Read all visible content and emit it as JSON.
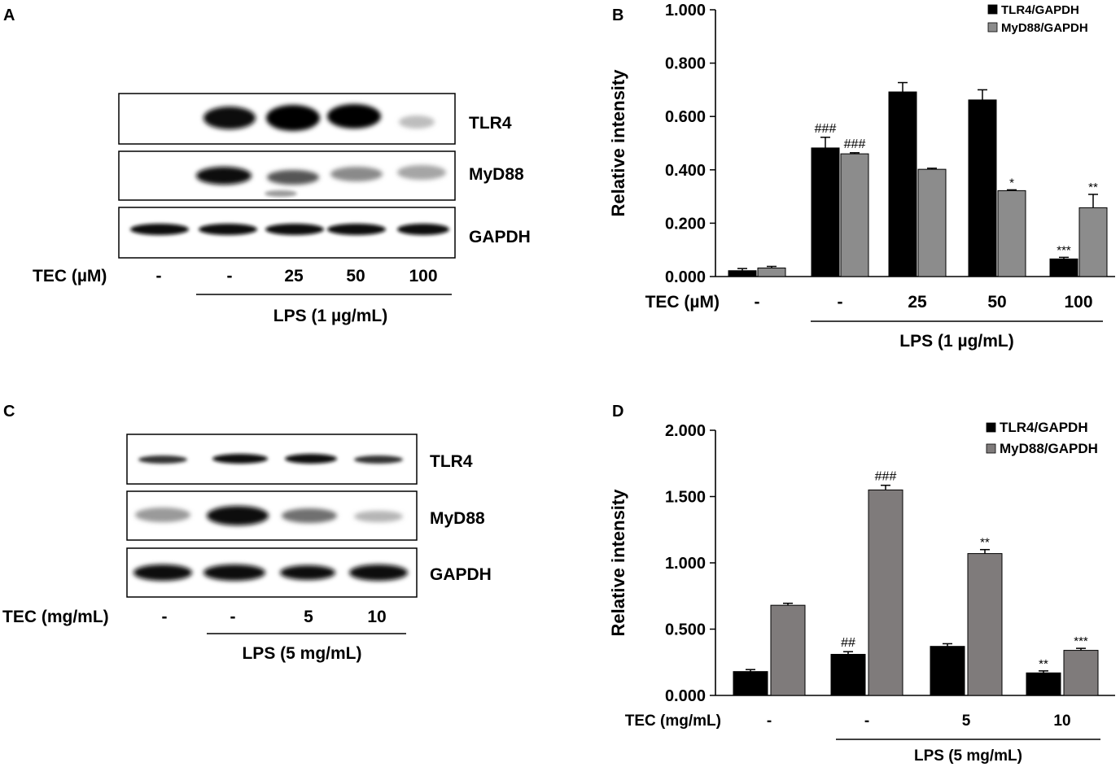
{
  "colors": {
    "black": "#000000",
    "gray": "#8c8c8c",
    "gray_d": "#7f7b7b",
    "text": "#000000"
  },
  "panels": {
    "a": {
      "letter": "A",
      "blot_labels": [
        "TLR4",
        "MyD88",
        "GAPDH"
      ],
      "row_header": "TEC (µM)",
      "lane_values": [
        "-",
        "-",
        "25",
        "50",
        "100"
      ],
      "group_label": "LPS (1 µg/mL)"
    },
    "c": {
      "letter": "C",
      "blot_labels": [
        "TLR4",
        "MyD88",
        "GAPDH"
      ],
      "row_header": "TEC (mg/mL)",
      "lane_values": [
        "-",
        "-",
        "5",
        "10"
      ],
      "group_label": "LPS (5 mg/mL)"
    }
  },
  "chart_data": [
    {
      "panel": "B",
      "type": "bar",
      "ylabel": "Relative intensity",
      "ylim": [
        0,
        1.0
      ],
      "yticks": [
        "0.000",
        "0.200",
        "0.400",
        "0.600",
        "0.800",
        "1.000"
      ],
      "xlabel_header": "TEC (µM)",
      "categories": [
        "-",
        "-",
        "25",
        "50",
        "100"
      ],
      "group_label": "LPS (1 µg/mL)",
      "legend_position": "top-right",
      "series": [
        {
          "name": "TLR4/GAPDH",
          "color": "#000000",
          "values": [
            0.022,
            0.482,
            0.692,
            0.662,
            0.066
          ],
          "errors": [
            0.008,
            0.04,
            0.035,
            0.038,
            0.006
          ],
          "annotations": [
            "",
            "###",
            "",
            "",
            "***"
          ]
        },
        {
          "name": "MyD88/GAPDH",
          "color": "#8c8c8c",
          "values": [
            0.032,
            0.46,
            0.402,
            0.322,
            0.258
          ],
          "errors": [
            0.006,
            0.004,
            0.004,
            0.003,
            0.05
          ],
          "annotations": [
            "",
            "###",
            "",
            "*",
            "**"
          ]
        }
      ]
    },
    {
      "panel": "D",
      "type": "bar",
      "ylabel": "Relative intensity",
      "ylim": [
        0,
        2.0
      ],
      "yticks": [
        "0.000",
        "0.500",
        "1.000",
        "1.500",
        "2.000"
      ],
      "xlabel_header": "TEC (mg/mL)",
      "categories": [
        "-",
        "-",
        "5",
        "10"
      ],
      "group_label": "LPS (5 mg/mL)",
      "legend_position": "top-right",
      "series": [
        {
          "name": "TLR4/GAPDH",
          "color": "#000000",
          "values": [
            0.18,
            0.31,
            0.37,
            0.17
          ],
          "errors": [
            0.015,
            0.02,
            0.02,
            0.015
          ],
          "annotations": [
            "",
            "##",
            "",
            "**"
          ]
        },
        {
          "name": "MyD88/GAPDH",
          "color": "#7f7b7b",
          "values": [
            0.68,
            1.55,
            1.07,
            0.34
          ],
          "errors": [
            0.015,
            0.035,
            0.03,
            0.015
          ],
          "annotations": [
            "",
            "###",
            "**",
            "***"
          ]
        }
      ]
    }
  ]
}
